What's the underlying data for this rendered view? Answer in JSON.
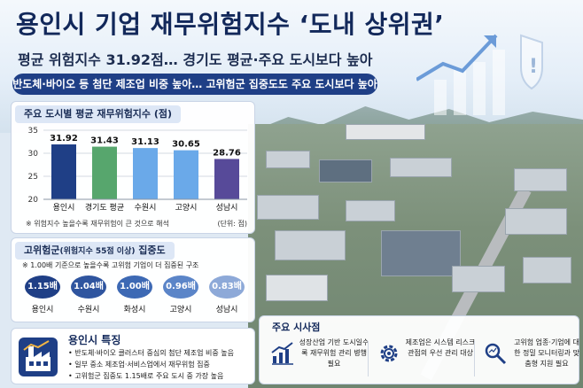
{
  "header": {
    "title": "용인시 기업 재무위험지수 ‘도내 상위권’",
    "subtitle": "평균 위험지수 31.92점… 경기도 평균·주요 도시보다 높아",
    "banner": "반도체·바이오 등 첨단 제조업 비중 높아… 고위험군 집중도도 주요 도시보다 높아"
  },
  "chart_panel": {
    "title": "주요 도시별 평균 재무위험지수 (점)",
    "note": "※ 위험지수 높을수록 재무위험이 큰 것으로 해석",
    "unit": "(단위: 점)"
  },
  "chart_data": {
    "type": "bar",
    "title": "주요 도시별 평균 재무위험지수 (점)",
    "categories": [
      "용인시",
      "경기도 평균",
      "수원시",
      "고양시",
      "성남시"
    ],
    "values": [
      31.92,
      31.43,
      31.13,
      30.65,
      28.76
    ],
    "value_labels": [
      "31.92",
      "31.43",
      "31.13",
      "30.65",
      "28.76"
    ],
    "yticks": [
      20,
      25,
      30,
      35
    ],
    "ylim": [
      20,
      35
    ],
    "grid": true,
    "colors": [
      "#1f3f86",
      "#57a66d",
      "#6aa9e9",
      "#6aa9e9",
      "#574a99"
    ]
  },
  "concentration": {
    "title": "고위험군",
    "title_small": "(위험지수 55점 이상)",
    "title_tail": " 집중도",
    "subtitle": "※ 1.00배 기준으로 높을수록 고위험 기업이 더 집중된 구조",
    "items": [
      {
        "value": "1.15배",
        "label": "용인시",
        "color": "#1f3f86"
      },
      {
        "value": "1.04배",
        "label": "수원시",
        "color": "#2f559f"
      },
      {
        "value": "1.00배",
        "label": "화성시",
        "color": "#3d69b4"
      },
      {
        "value": "0.96배",
        "label": "고양시",
        "color": "#5b85c8"
      },
      {
        "value": "0.83배",
        "label": "성남시",
        "color": "#8da9d8"
      }
    ]
  },
  "features": {
    "title": "용인시 특징",
    "items": [
      "• 반도체·바이오 클러스터 중심의 첨단 제조업 비중 높음",
      "• 일부 중소 제조업·서비스업에서 재무위험 집중",
      "• 고위험군 집중도 1.15배로 주요 도시 중 가장 높음"
    ]
  },
  "implications": {
    "title": "주요 시사점",
    "items": [
      {
        "text": "성장산업 기반 도시일수록 재무위험 관리 병행 필요",
        "icon": "growth-chart-icon"
      },
      {
        "text": "제조업은 시스템 리스크 관점의 우선 관리 대상",
        "icon": "gear-icon"
      },
      {
        "text": "고위험 업종·기업에 대한 정밀 모니터링과 맞춤형 지원 필요",
        "icon": "magnifier-icon"
      }
    ]
  }
}
